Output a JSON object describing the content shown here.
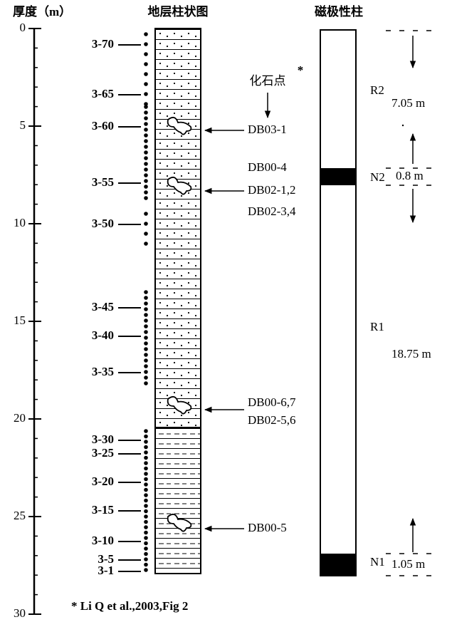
{
  "axis": {
    "title": "厚度（m）",
    "ylim": [
      0,
      30
    ],
    "yticks": [
      0,
      5,
      10,
      15,
      20,
      25,
      30
    ]
  },
  "column_title": "地层柱状图",
  "polarity_title": "磁极性柱",
  "samples": [
    "3-70",
    "3-65",
    "3-60",
    "3-55",
    "3-50",
    "3-45",
    "3-40",
    "3-35",
    "3-30",
    "3-25",
    "3-20",
    "3-15",
    "3-10",
    "3-5",
    "3-1"
  ],
  "fossil_header": "化石点",
  "fossil_mark": "*",
  "fossils": [
    [
      "DB03-1"
    ],
    [
      "DB00-4",
      "DB02-1,2",
      "DB02-3,4"
    ],
    [
      "DB00-6,7",
      "DB02-5,6"
    ],
    [
      "DB00-5"
    ]
  ],
  "zones": [
    {
      "name": "R2",
      "thickness": "7.05 m"
    },
    {
      "name": "N2",
      "thickness": "0.8 m"
    },
    {
      "name": "R1",
      "thickness": "18.75 m"
    },
    {
      "name": "N1",
      "thickness": "1.05 m"
    }
  ],
  "source": "* Li Q et al.,2003,Fig 2"
}
